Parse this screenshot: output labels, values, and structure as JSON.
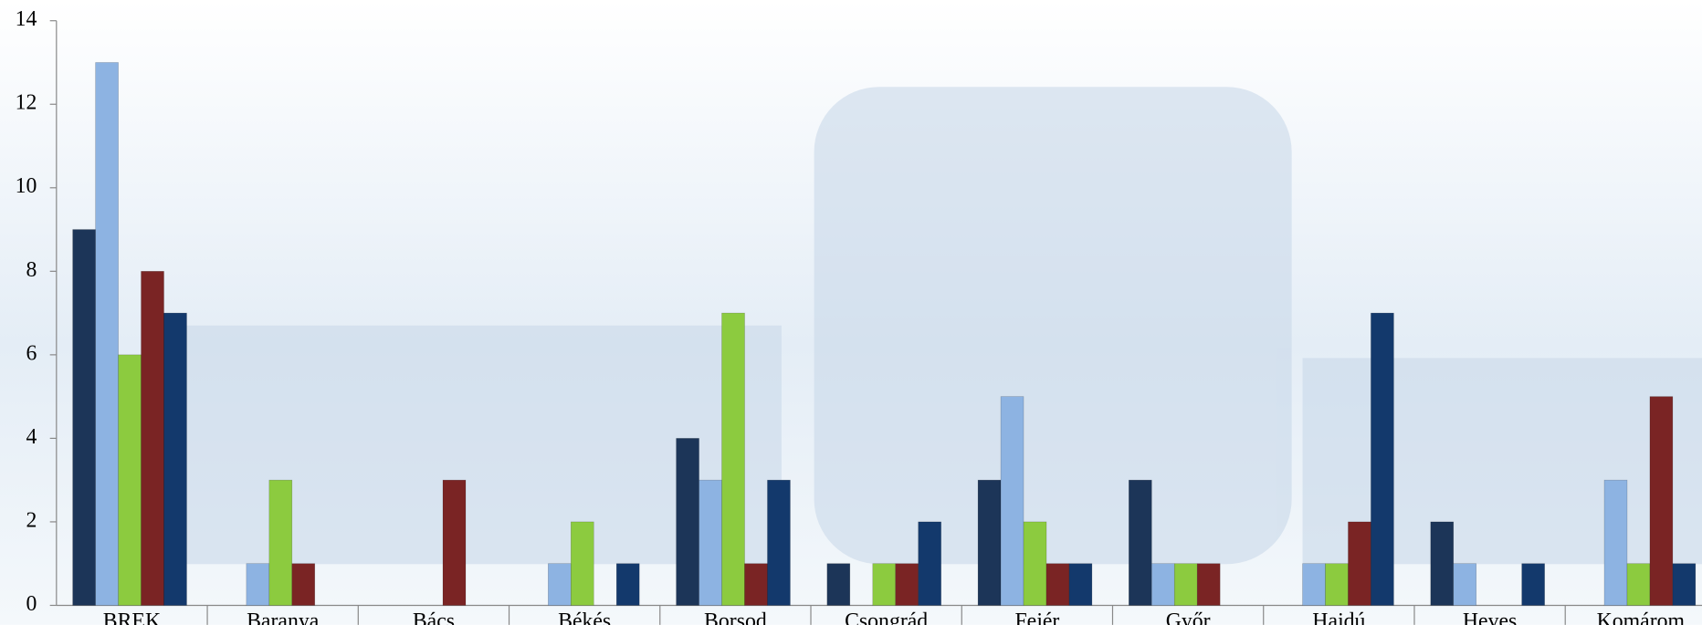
{
  "chart_data": {
    "type": "bar",
    "categories": [
      "BREK",
      "Baranya",
      "Bács",
      "Békés",
      "Borsod",
      "Csongrád",
      "Fejér",
      "Győr",
      "Hajdú",
      "Heves",
      "Komárom"
    ],
    "series": [
      {
        "color": "#1c3558",
        "values": [
          9,
          0,
          0,
          0,
          4,
          1,
          3,
          3,
          0,
          2,
          0
        ]
      },
      {
        "color": "#8db3e2",
        "values": [
          13,
          1,
          0,
          1,
          3,
          0,
          5,
          1,
          1,
          1,
          3
        ]
      },
      {
        "color": "#8ccb3f",
        "values": [
          6,
          3,
          0,
          2,
          7,
          1,
          2,
          1,
          1,
          0,
          1
        ]
      },
      {
        "color": "#7a2424",
        "values": [
          8,
          1,
          3,
          0,
          1,
          1,
          1,
          1,
          2,
          0,
          5
        ]
      },
      {
        "color": "#13396c",
        "values": [
          7,
          0,
          0,
          1,
          3,
          2,
          1,
          0,
          7,
          1,
          1
        ]
      }
    ],
    "ylim": [
      0,
      14
    ],
    "yticks": [
      0,
      2,
      4,
      6,
      8,
      10,
      12,
      14
    ]
  }
}
